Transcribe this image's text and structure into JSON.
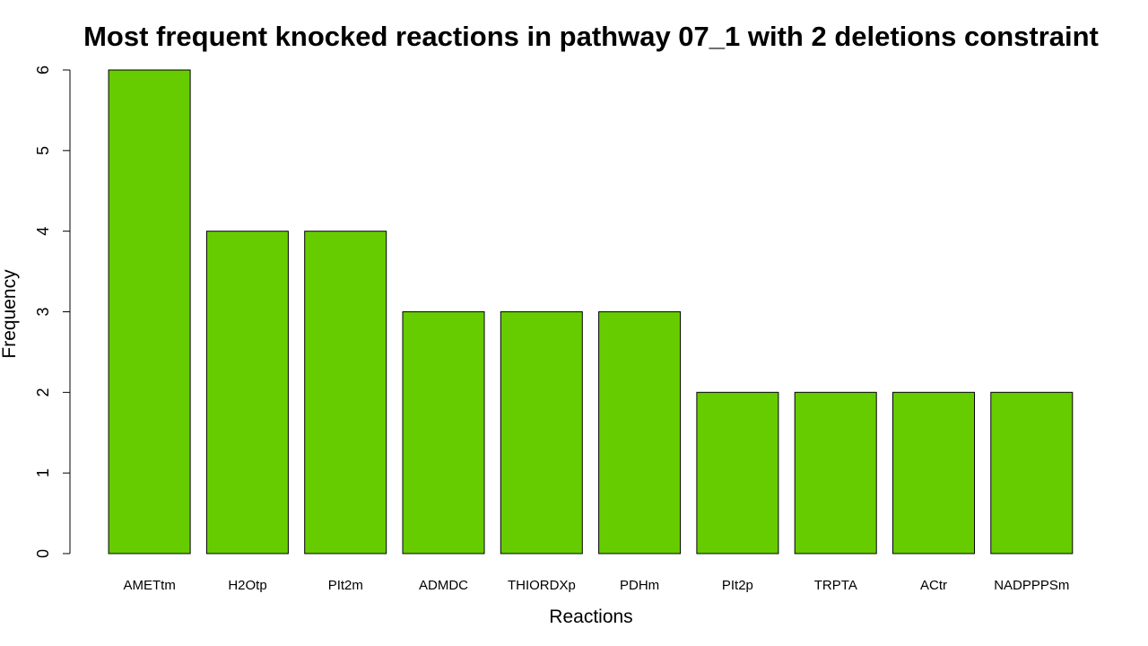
{
  "chart_data": {
    "type": "bar",
    "title": "Most frequent knocked reactions in pathway 07_1 with 2 deletions constraint",
    "xlabel": "Reactions",
    "ylabel": "Frequency",
    "categories": [
      "AMETtm",
      "H2Otp",
      "PIt2m",
      "ADMDC",
      "THIORDXp",
      "PDHm",
      "PIt2p",
      "TRPTA",
      "ACtr",
      "NADPPPSm"
    ],
    "values": [
      6,
      4,
      4,
      3,
      3,
      3,
      2,
      2,
      2,
      2
    ],
    "ylim": [
      0,
      6
    ],
    "yticks": [
      "0",
      "1",
      "2",
      "3",
      "4",
      "5",
      "6"
    ],
    "bar_color": "#66cc00",
    "grid": false,
    "legend": "none"
  }
}
